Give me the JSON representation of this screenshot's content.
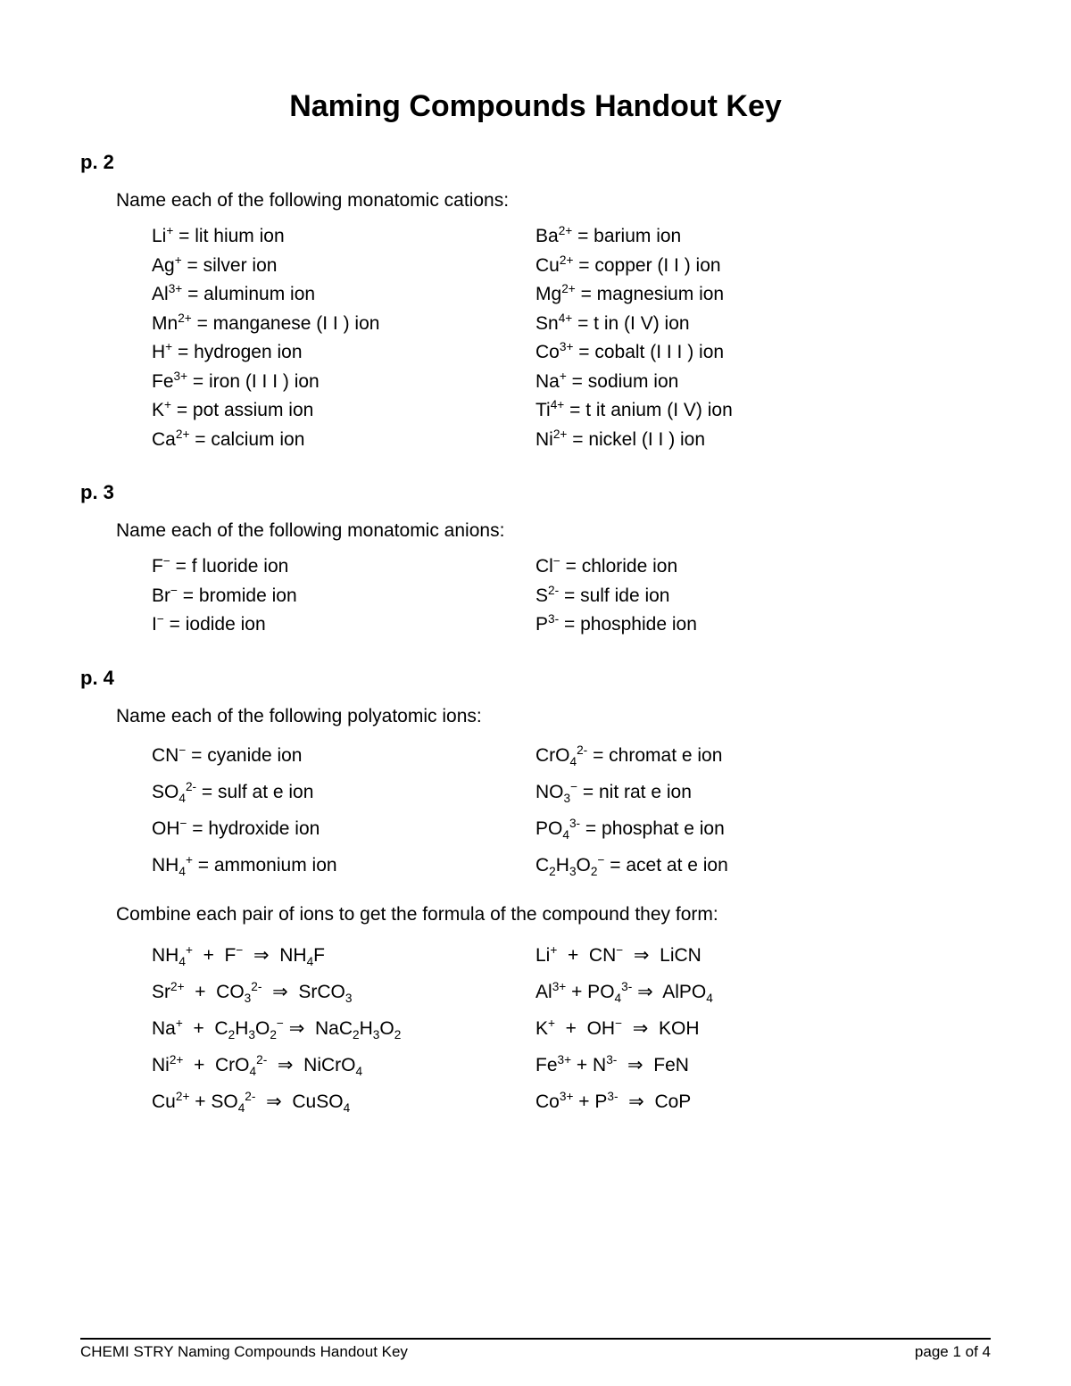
{
  "title": "Naming Compounds Handout Key",
  "sections": [
    {
      "label": "p. 2",
      "prompt": "Name each of the following monatomic cations:",
      "style": "tight",
      "left": [
        {
          "f": "Li",
          "s": "+",
          "n": "lit hium ion"
        },
        {
          "f": "Ag",
          "s": "+",
          "n": "silver ion"
        },
        {
          "f": "Al",
          "s": "3+",
          "n": "aluminum ion"
        },
        {
          "f": "Mn",
          "s": "2+",
          "n": "manganese (I I ) ion"
        },
        {
          "f": "H",
          "s": "+",
          "n": "hydrogen ion"
        },
        {
          "f": "Fe",
          "s": "3+",
          "n": "iron (I I I ) ion"
        },
        {
          "f": "K",
          "s": "+",
          "n": "pot assium ion"
        },
        {
          "f": "Ca",
          "s": "2+",
          "n": "calcium ion"
        }
      ],
      "right": [
        {
          "f": "Ba",
          "s": "2+",
          "n": "barium ion"
        },
        {
          "f": "Cu",
          "s": "2+",
          "n": "copper (I I ) ion"
        },
        {
          "f": "Mg",
          "s": "2+",
          "n": "magnesium ion"
        },
        {
          "f": "Sn",
          "s": "4+",
          "n": "t in (I V) ion"
        },
        {
          "f": "Co",
          "s": "3+",
          "n": "cobalt (I I I ) ion"
        },
        {
          "f": "Na",
          "s": "+",
          "n": "sodium ion"
        },
        {
          "f": "Ti",
          "s": "4+",
          "n": "t it anium (I V) ion"
        },
        {
          "f": "Ni",
          "s": "2+",
          "n": "nickel (I I ) ion"
        }
      ]
    },
    {
      "label": "p. 3",
      "prompt": "Name each of the following monatomic anions:",
      "style": "tight",
      "left": [
        {
          "f": "F",
          "s": "−",
          "n": " f luoride ion"
        },
        {
          "f": "Br",
          "s": "−",
          "n": " bromide ion"
        },
        {
          "f": "I",
          "s": "−",
          "n": "iodide ion"
        }
      ],
      "right": [
        {
          "f": "Cl",
          "s": "−",
          "n": "  chloride ion"
        },
        {
          "f": "S",
          "s": "2-",
          "n": "  sulf ide ion"
        },
        {
          "f": "P",
          "s": "3-",
          "n": "   phosphide ion"
        }
      ]
    },
    {
      "label": "p. 4",
      "prompt": "Name each of the following polyatomic ions:",
      "style": "loose",
      "left": [
        {
          "html": "CN<sup>−</sup> = cyanide ion"
        },
        {
          "html": "SO<sub>4</sub><sup>2-</sup> = sulf at e ion"
        },
        {
          "html": "OH<sup>−</sup> = hydroxide ion"
        },
        {
          "html": "NH<sub>4</sub><sup>+</sup> = ammonium ion"
        }
      ],
      "right": [
        {
          "html": "CrO<sub>4</sub><sup>2-</sup> = chromat e ion"
        },
        {
          "html": "NO<sub>3</sub><sup>−</sup> =  nit rat e ion"
        },
        {
          "html": "PO<sub>4</sub><sup>3-</sup> = phosphat e ion"
        },
        {
          "html": "C<sub>2</sub>H<sub>3</sub>O<sub>2</sub><sup>−</sup> = acet at e ion"
        }
      ]
    }
  ],
  "combine_prompt": "Combine each pair of ions to get the formula of the compound they form:",
  "combine_left": [
    {
      "html": "NH<sub>4</sub><sup>+</sup> &nbsp;+&nbsp; F<sup>−</sup> &nbsp;⇒&nbsp; NH<sub>4</sub>F"
    },
    {
      "html": "Sr<sup>2+</sup> &nbsp;+&nbsp; CO<sub>3</sub><sup>2-</sup> &nbsp;⇒&nbsp; SrCO<sub>3</sub>"
    },
    {
      "html": "Na<sup>+</sup> &nbsp;+&nbsp; C<sub>2</sub>H<sub>3</sub>O<sub>2</sub><sup>−</sup> ⇒&nbsp; NaC<sub>2</sub>H<sub>3</sub>O<sub>2</sub>"
    },
    {
      "html": "Ni<sup>2+</sup> &nbsp;+&nbsp; CrO<sub>4</sub><sup>2-</sup> &nbsp;⇒&nbsp; NiCrO<sub>4</sub>"
    },
    {
      "html": "Cu<sup>2+</sup> + SO<sub>4</sub><sup>2-</sup> &nbsp;⇒&nbsp; CuSO<sub>4</sub>"
    }
  ],
  "combine_right": [
    {
      "html": "Li<sup>+</sup> &nbsp;+&nbsp; CN<sup>−</sup> &nbsp;⇒&nbsp; LiCN"
    },
    {
      "html": "Al<sup>3+</sup> + PO<sub>4</sub><sup>3-</sup> ⇒&nbsp; AlPO<sub>4</sub>"
    },
    {
      "html": "K<sup>+</sup> &nbsp;+&nbsp; OH<sup>−</sup> &nbsp;⇒&nbsp; KOH"
    },
    {
      "html": "Fe<sup>3+</sup> + N<sup>3-</sup> &nbsp;⇒&nbsp; FeN"
    },
    {
      "html": "Co<sup>3+</sup> + P<sup>3-</sup> &nbsp;⇒&nbsp; CoP"
    }
  ],
  "footer_left": "CHEMI STRY Naming Compounds Handout Key",
  "footer_right": "page 1 of 4",
  "colors": {
    "text": "#000000",
    "bg": "#ffffff",
    "rule": "#000000"
  },
  "fontsizes": {
    "title": 34,
    "label": 22,
    "body": 21,
    "footer": 17
  }
}
